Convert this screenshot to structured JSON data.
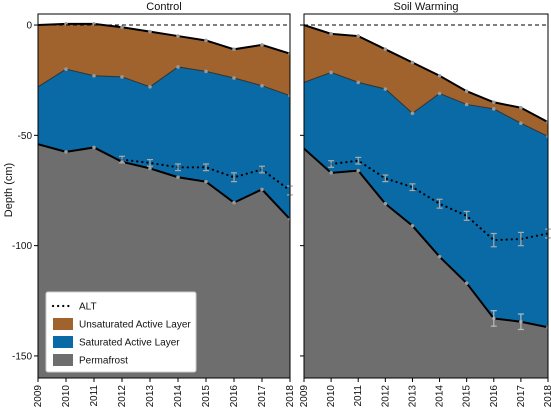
{
  "chart_data": {
    "type": "area",
    "ylabel": "Depth (cm)",
    "ylim": [
      -160,
      5
    ],
    "yticks": [
      0,
      -50,
      -100,
      -150
    ],
    "x": [
      2009,
      2010,
      2011,
      2012,
      2013,
      2014,
      2015,
      2016,
      2017,
      2018
    ],
    "xlim": [
      2009,
      2018
    ],
    "reference_line": 0,
    "legend": {
      "placement": "lower-left",
      "entries": [
        "ALT",
        "Unsaturated Active Layer",
        "Saturated Active Layer",
        "Permafrost"
      ]
    },
    "colors": {
      "unsaturated": "#a0632e",
      "saturated": "#0a6aa5",
      "permafrost": "#6e6e6e"
    },
    "panels": [
      {
        "title": "Control",
        "surface": [
          0,
          0.5,
          0.5,
          -1,
          -3,
          -5,
          -7,
          -11,
          -9,
          -13
        ],
        "water_table": [
          -28,
          -20,
          -23,
          -23.5,
          -28,
          -19,
          -21,
          -24,
          -27.5,
          -32
        ],
        "permafrost_top": [
          -54,
          -57.5,
          -55.5,
          -62,
          -65,
          -69,
          -71,
          -80.5,
          -74.5,
          -88
        ],
        "alt": [
          null,
          null,
          null,
          -61,
          -62.5,
          -64.5,
          -64.5,
          -69,
          -65.5,
          -75
        ],
        "alt_error": [
          null,
          null,
          null,
          1.5,
          1.5,
          1.5,
          1.5,
          2,
          1.5,
          2
        ]
      },
      {
        "title": "Soil Warming",
        "surface": [
          0,
          -4,
          -5,
          -11,
          -17,
          -23,
          -30,
          -35,
          -37.5,
          -44
        ],
        "water_table": [
          -26,
          -21.5,
          -26,
          -29,
          -40,
          -31,
          -36,
          -38,
          -44.5,
          -50.5
        ],
        "permafrost_top": [
          -56,
          -67,
          -66,
          -81,
          -91,
          -105,
          -117,
          -133,
          -134.5,
          -137
        ],
        "alt": [
          null,
          -63,
          -61.5,
          -69.5,
          -73.5,
          -81,
          -86.5,
          -97.5,
          -97,
          -94.5
        ],
        "alt_error": [
          null,
          1.5,
          1.5,
          1.5,
          1.5,
          2,
          2,
          3,
          3,
          2
        ],
        "permafrost_error": [
          null,
          null,
          null,
          null,
          null,
          null,
          null,
          3.5,
          3.5,
          null
        ]
      }
    ]
  }
}
